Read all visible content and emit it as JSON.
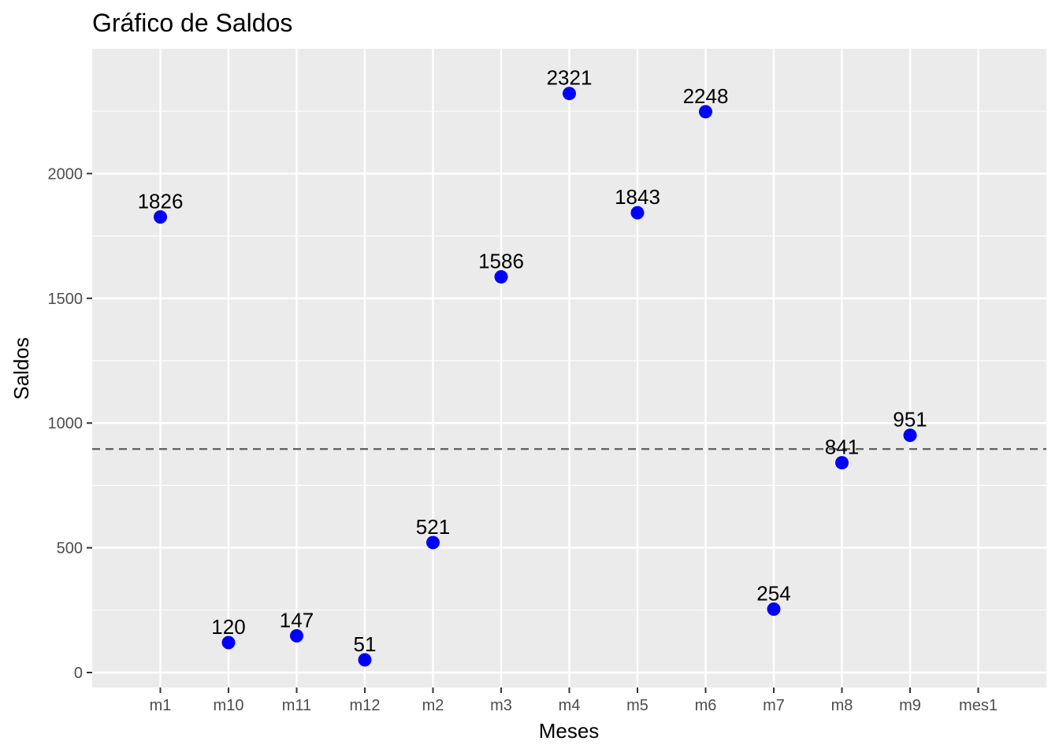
{
  "chart_data": {
    "type": "scatter",
    "title": "Gráfico de Saldos",
    "xlabel": "Meses",
    "ylabel": "Saldos",
    "categories": [
      "m1",
      "m10",
      "m11",
      "m12",
      "m2",
      "m3",
      "m4",
      "m5",
      "m6",
      "m7",
      "m8",
      "m9",
      "mes1"
    ],
    "points": [
      {
        "x": "m1",
        "y": 1826,
        "label": "1826"
      },
      {
        "x": "m10",
        "y": 120,
        "label": "120"
      },
      {
        "x": "m11",
        "y": 147,
        "label": "147"
      },
      {
        "x": "m12",
        "y": 51,
        "label": "51"
      },
      {
        "x": "m2",
        "y": 521,
        "label": "521"
      },
      {
        "x": "m3",
        "y": 1586,
        "label": "1586"
      },
      {
        "x": "m4",
        "y": 2321,
        "label": "2321"
      },
      {
        "x": "m5",
        "y": 1843,
        "label": "1843"
      },
      {
        "x": "m6",
        "y": 2248,
        "label": "2248"
      },
      {
        "x": "m7",
        "y": 254,
        "label": "254"
      },
      {
        "x": "m8",
        "y": 841,
        "label": "841"
      },
      {
        "x": "m9",
        "y": 951,
        "label": "951"
      }
    ],
    "ylim": [
      -60,
      2500
    ],
    "y_ticks": [
      0,
      500,
      1000,
      1500,
      2000
    ],
    "y_tick_labels": [
      "0",
      "500",
      "1000",
      "1500",
      "2000"
    ],
    "reference_line": {
      "y": 896,
      "style": "dashed"
    },
    "grid": true,
    "legend": "none",
    "colors": {
      "point": "#0000ff",
      "panel": "#ebebeb",
      "grid": "#ffffff",
      "reference_line": "#666666"
    }
  }
}
